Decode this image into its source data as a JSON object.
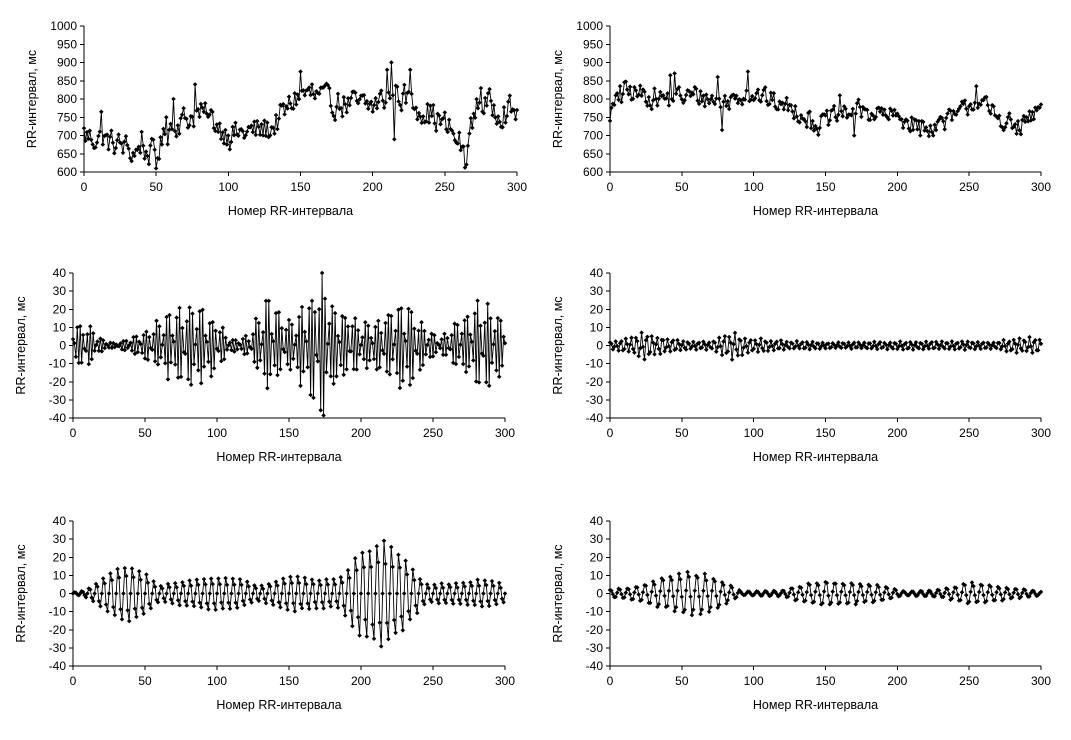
{
  "chart_data": [
    {
      "id": "chart-1",
      "type": "line",
      "title": "",
      "xlabel": "Номер RR-интервала",
      "ylabel": "RR-интервал, мс",
      "xlim": [
        0,
        300
      ],
      "ylim": [
        600,
        1000
      ],
      "xticks": [
        0,
        50,
        100,
        150,
        200,
        250,
        300
      ],
      "yticks": [
        600,
        650,
        700,
        750,
        800,
        850,
        900,
        950,
        1000
      ],
      "grid": false,
      "legend": "none",
      "series": [
        {
          "kind": "irregular",
          "n": 300,
          "baseline": [
            [
              0,
              700
            ],
            [
              20,
              680
            ],
            [
              35,
              660
            ],
            [
              50,
              650
            ],
            [
              60,
              730
            ],
            [
              80,
              760
            ],
            [
              90,
              740
            ],
            [
              100,
              700
            ],
            [
              130,
              720
            ],
            [
              150,
              820
            ],
            [
              170,
              790
            ],
            [
              200,
              780
            ],
            [
              215,
              820
            ],
            [
              240,
              760
            ],
            [
              258,
              700
            ],
            [
              264,
              640
            ],
            [
              272,
              790
            ],
            [
              300,
              760
            ]
          ],
          "variability": [
            [
              0,
              35
            ],
            [
              300,
              40
            ]
          ],
          "samples": [
            [
              0,
              720
            ],
            [
              12,
              765
            ],
            [
              33,
              630
            ],
            [
              40,
              710
            ],
            [
              50,
              610
            ],
            [
              57,
              750
            ],
            [
              62,
              800
            ],
            [
              77,
              840
            ],
            [
              85,
              760
            ],
            [
              100,
              700
            ],
            [
              140,
              780
            ],
            [
              150,
              875
            ],
            [
              158,
              840
            ],
            [
              170,
              830
            ],
            [
              210,
              880
            ],
            [
              213,
              900
            ],
            [
              215,
              690
            ],
            [
              226,
              880
            ],
            [
              258,
              680
            ],
            [
              264,
              612
            ],
            [
              270,
              760
            ],
            [
              275,
              830
            ],
            [
              300,
              770
            ]
          ]
        }
      ]
    },
    {
      "id": "chart-2",
      "type": "line",
      "title": "",
      "xlabel": "Номер RR-интервала",
      "ylabel": "RR-интервал, мс",
      "xlim": [
        0,
        300
      ],
      "ylim": [
        600,
        1000
      ],
      "xticks": [
        0,
        50,
        100,
        150,
        200,
        250,
        300
      ],
      "yticks": [
        600,
        650,
        700,
        750,
        800,
        850,
        900,
        950,
        1000
      ],
      "grid": false,
      "legend": "none",
      "series": [
        {
          "kind": "irregular",
          "n": 300,
          "baseline": [
            [
              0,
              760
            ],
            [
              10,
              820
            ],
            [
              40,
              800
            ],
            [
              60,
              810
            ],
            [
              80,
              790
            ],
            [
              95,
              820
            ],
            [
              130,
              770
            ],
            [
              145,
              730
            ],
            [
              170,
              770
            ],
            [
              200,
              750
            ],
            [
              220,
              720
            ],
            [
              240,
              750
            ],
            [
              255,
              800
            ],
            [
              270,
              750
            ],
            [
              285,
              720
            ],
            [
              300,
              775
            ]
          ],
          "variability": [
            [
              0,
              30
            ],
            [
              300,
              25
            ]
          ],
          "samples": [
            [
              0,
              740
            ],
            [
              7,
              835
            ],
            [
              42,
              865
            ],
            [
              45,
              870
            ],
            [
              75,
              860
            ],
            [
              78,
              715
            ],
            [
              96,
              875
            ],
            [
              120,
              790
            ],
            [
              140,
              720
            ],
            [
              160,
              810
            ],
            [
              170,
              700
            ],
            [
              200,
              760
            ],
            [
              216,
              700
            ],
            [
              255,
              835
            ],
            [
              265,
              760
            ],
            [
              283,
              705
            ],
            [
              300,
              785
            ]
          ]
        }
      ]
    },
    {
      "id": "chart-3",
      "type": "line",
      "title": "",
      "xlabel": "Номер RR-интервала",
      "ylabel": "RR-интервал, мс",
      "xlim": [
        0,
        300
      ],
      "ylim": [
        -40,
        40
      ],
      "xticks": [
        0,
        50,
        100,
        150,
        200,
        250,
        300
      ],
      "yticks": [
        -40,
        -30,
        -20,
        -10,
        0,
        10,
        20,
        30,
        40
      ],
      "grid": false,
      "legend": "none",
      "series": [
        {
          "kind": "oscillation",
          "n": 300,
          "period": 2.3,
          "phase": 0.3,
          "envelope": [
            [
              0,
              12
            ],
            [
              10,
              11
            ],
            [
              20,
              3
            ],
            [
              30,
              1
            ],
            [
              40,
              4
            ],
            [
              55,
              10
            ],
            [
              70,
              18
            ],
            [
              85,
              24
            ],
            [
              100,
              12
            ],
            [
              110,
              3
            ],
            [
              122,
              5
            ],
            [
              135,
              28
            ],
            [
              148,
              12
            ],
            [
              158,
              20
            ],
            [
              172,
              37
            ],
            [
              185,
              20
            ],
            [
              200,
              12
            ],
            [
              212,
              14
            ],
            [
              230,
              26
            ],
            [
              245,
              10
            ],
            [
              255,
              3
            ],
            [
              265,
              12
            ],
            [
              285,
              24
            ],
            [
              300,
              14
            ]
          ],
          "noise": 0.18
        }
      ]
    },
    {
      "id": "chart-4",
      "type": "line",
      "title": "",
      "xlabel": "Номер RR-интервала",
      "ylabel": "RR-интервал, мс",
      "xlim": [
        0,
        300
      ],
      "ylim": [
        -40,
        40
      ],
      "xticks": [
        0,
        50,
        100,
        150,
        200,
        250,
        300
      ],
      "yticks": [
        -40,
        -30,
        -20,
        -10,
        0,
        10,
        20,
        30,
        40
      ],
      "grid": false,
      "legend": "none",
      "series": [
        {
          "kind": "oscillation",
          "n": 300,
          "period": 3.6,
          "phase": 0.8,
          "envelope": [
            [
              0,
              2
            ],
            [
              15,
              4
            ],
            [
              25,
              7
            ],
            [
              40,
              4
            ],
            [
              55,
              2
            ],
            [
              70,
              2
            ],
            [
              85,
              7
            ],
            [
              95,
              4
            ],
            [
              110,
              3
            ],
            [
              130,
              2
            ],
            [
              160,
              1.5
            ],
            [
              200,
              2
            ],
            [
              240,
              2
            ],
            [
              270,
              2
            ],
            [
              285,
              4
            ],
            [
              300,
              4
            ]
          ],
          "noise": 0.2
        }
      ]
    },
    {
      "id": "chart-5",
      "type": "line",
      "title": "",
      "xlabel": "Номер RR-интервала",
      "ylabel": "RR-интервал, мс",
      "xlim": [
        0,
        300
      ],
      "ylim": [
        -40,
        40
      ],
      "xticks": [
        0,
        50,
        100,
        150,
        200,
        250,
        300
      ],
      "yticks": [
        -40,
        -30,
        -20,
        -10,
        0,
        10,
        20,
        30,
        40
      ],
      "grid": false,
      "legend": "none",
      "series": [
        {
          "kind": "oscillation",
          "n": 300,
          "period": 5,
          "phase": 0,
          "envelope": [
            [
              0,
              0.5
            ],
            [
              8,
              1.5
            ],
            [
              20,
              8
            ],
            [
              35,
              16
            ],
            [
              50,
              12
            ],
            [
              60,
              4
            ],
            [
              70,
              6
            ],
            [
              95,
              9
            ],
            [
              115,
              8
            ],
            [
              130,
              4
            ],
            [
              150,
              10
            ],
            [
              170,
              8
            ],
            [
              185,
              8
            ],
            [
              200,
              24
            ],
            [
              215,
              30
            ],
            [
              228,
              22
            ],
            [
              245,
              5
            ],
            [
              270,
              6
            ],
            [
              285,
              8
            ],
            [
              300,
              5
            ]
          ],
          "noise": 0.08
        }
      ]
    },
    {
      "id": "chart-6",
      "type": "line",
      "title": "",
      "xlabel": "Номер RR-интервала",
      "ylabel": "RR-интервал, мс",
      "xlim": [
        0,
        300
      ],
      "ylim": [
        -40,
        40
      ],
      "xticks": [
        0,
        50,
        100,
        150,
        200,
        250,
        300
      ],
      "yticks": [
        -40,
        -30,
        -20,
        -10,
        0,
        10,
        20,
        30,
        40
      ],
      "grid": false,
      "legend": "none",
      "series": [
        {
          "kind": "oscillation",
          "n": 300,
          "period": 6,
          "phase": 1.2,
          "envelope": [
            [
              0,
              2
            ],
            [
              20,
              4
            ],
            [
              40,
              9
            ],
            [
              55,
              12
            ],
            [
              70,
              10
            ],
            [
              82,
              5
            ],
            [
              92,
              1
            ],
            [
              120,
              1.5
            ],
            [
              135,
              5
            ],
            [
              150,
              7
            ],
            [
              165,
              6
            ],
            [
              185,
              5
            ],
            [
              205,
              1
            ],
            [
              230,
              2
            ],
            [
              250,
              6
            ],
            [
              270,
              4
            ],
            [
              290,
              2
            ],
            [
              300,
              1
            ]
          ],
          "noise": 0.12
        }
      ]
    }
  ]
}
